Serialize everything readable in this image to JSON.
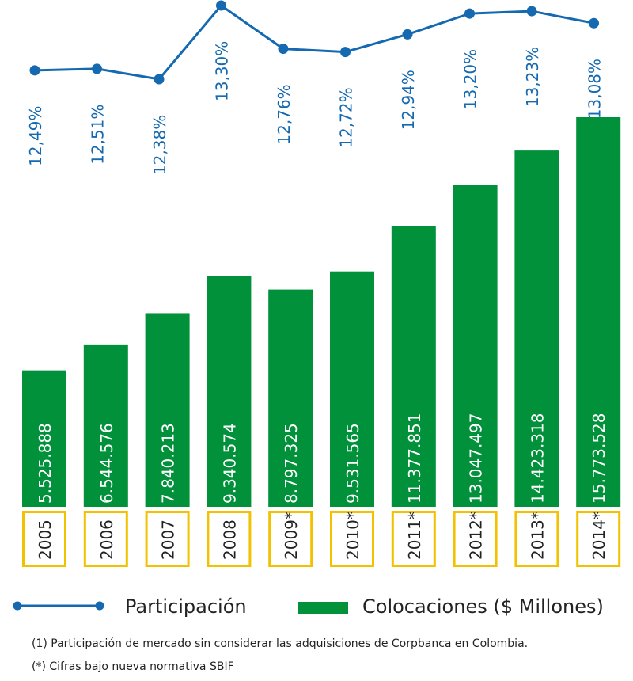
{
  "chart_data": {
    "type": "bar+line",
    "categories": [
      "2005",
      "2006",
      "2007",
      "2008",
      "2009*",
      "2010*",
      "2011*",
      "2012*",
      "2013*",
      "2014*"
    ],
    "series": [
      {
        "name": "Colocaciones ($ Millones)",
        "type": "bar",
        "color": "#00913a",
        "values": [
          5525888,
          6544576,
          7840213,
          9340574,
          8797325,
          9531565,
          11377851,
          13047497,
          14423318,
          15773528
        ],
        "labels": [
          "5.525.888",
          "6.544.576",
          "7.840.213",
          "9.340.574",
          "8.797.325",
          "9.531.565",
          "11.377.851",
          "13.047.497",
          "14.423.318",
          "15.773.528"
        ]
      },
      {
        "name": "Participación",
        "type": "line",
        "color": "#1569b0",
        "values": [
          12.49,
          12.51,
          12.38,
          13.3,
          12.76,
          12.72,
          12.94,
          13.2,
          13.23,
          13.08
        ],
        "labels": [
          "12,49%",
          "12,51%",
          "12,38%",
          "13,30%",
          "12,76%",
          "12,72%",
          "12,94%",
          "13,20%",
          "13,23%",
          "13,08%"
        ]
      }
    ],
    "bar_range": [
      0,
      16500000
    ],
    "line_range": [
      12.38,
      13.3
    ],
    "category_box_color": "#f2c200"
  },
  "legend": {
    "line_label": "Participación",
    "bar_label": "Colocaciones ($ Millones)"
  },
  "footnotes": [
    "(1) Participación de mercado sin considerar las adquisiciones de Corpbanca en Colombia.",
    "(*) Cifras bajo nueva normativa SBIF"
  ]
}
